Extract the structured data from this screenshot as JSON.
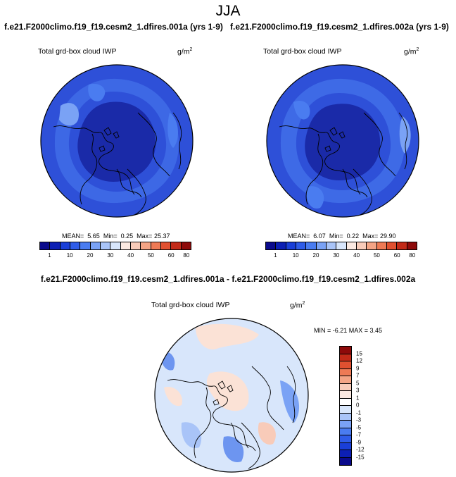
{
  "season": "JJA",
  "panel1": {
    "case_title": "f.e21.F2000climo.f19_f19.cesm2_1.dfires.001a (yrs 1-9)",
    "variable": "Total grd-box cloud IWP",
    "units": "g/m",
    "units_sup": "2",
    "mean_label": "MEAN=",
    "mean": "5.65",
    "min_label": "Min=",
    "min": "0.25",
    "max_label": "Max=",
    "max": "25.37"
  },
  "panel2": {
    "case_title": "f.e21.F2000climo.f19_f19.cesm2_1.dfires.002a (yrs 1-9)",
    "variable": "Total grd-box cloud IWP",
    "units": "g/m",
    "units_sup": "2",
    "mean_label": "MEAN=",
    "mean": "6.07",
    "min_label": "Min=",
    "min": "0.22",
    "max_label": "Max=",
    "max": "29.90"
  },
  "panel3": {
    "diff_title": "f.e21.F2000climo.f19_f19.cesm2_1.dfires.001a - f.e21.F2000climo.f19_f19.cesm2_1.dfires.002a",
    "variable": "Total grd-box cloud IWP",
    "units": "g/m",
    "units_sup": "2",
    "minmax_label": "MIN =  -6.21  MAX =   3.45"
  },
  "abs_colorbar": {
    "colors": [
      "#0a0a8c",
      "#0c1fb4",
      "#1a3fd8",
      "#2f5ce8",
      "#4a7cf0",
      "#7aa2f5",
      "#a9c4f8",
      "#d8e6fb",
      "#fbe9e1",
      "#f8cbb9",
      "#f4a485",
      "#ee7a55",
      "#e05030",
      "#c22a18",
      "#8e0a0a"
    ],
    "labels": [
      "1",
      "10",
      "20",
      "30",
      "40",
      "50",
      "60",
      "80"
    ]
  },
  "diff_colorbar": {
    "colors": [
      "#8e0a0a",
      "#c22a18",
      "#e05030",
      "#ee7a55",
      "#f4a485",
      "#f8cbb9",
      "#fbe9e1",
      "#ffffff",
      "#d8e6fb",
      "#a9c4f8",
      "#7aa2f5",
      "#4a7cf0",
      "#2f5ce8",
      "#1a3fd8",
      "#0c1fb4",
      "#0a0a8c"
    ],
    "labels": [
      "15",
      "12",
      "9",
      "7",
      "5",
      "3",
      "1",
      "0",
      "-1",
      "-3",
      "-5",
      "-7",
      "-9",
      "-12",
      "-15"
    ]
  },
  "map_colors": {
    "deep": "#1a2aa8",
    "mid": "#2e50d8",
    "light": "#4a7cf0",
    "pale": "#7aa2f5",
    "diff_bg": "#d8e6fb",
    "diff_pink": "#fbe2d6",
    "diff_blue": "#a9c4f8",
    "diff_dark": "#6d95f0"
  }
}
